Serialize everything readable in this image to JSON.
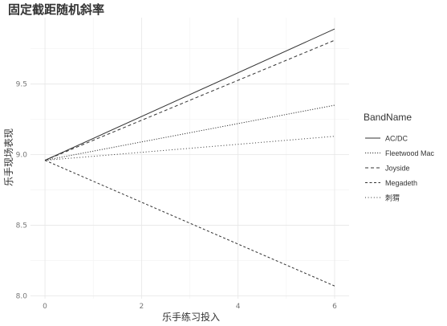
{
  "chart_data": {
    "type": "line",
    "title": "固定截距随机斜率",
    "xlabel": "乐手练习投入",
    "ylabel": "乐手现场表现",
    "xlim": [
      -0.3,
      6.3
    ],
    "ylim": [
      7.98,
      9.97
    ],
    "x_ticks": [
      0,
      2,
      4,
      6
    ],
    "y_ticks": [
      8.0,
      8.5,
      9.0,
      9.5
    ],
    "x_tick_labels": [
      "0",
      "2",
      "4",
      "6"
    ],
    "y_tick_labels": [
      "8.0",
      "8.5",
      "9.0",
      "9.5"
    ],
    "grid": true,
    "legend": {
      "title": "BandName",
      "position": "right"
    },
    "series": [
      {
        "name": "AC/DC",
        "linetype": "solid",
        "x": [
          0,
          6
        ],
        "y": [
          8.96,
          9.89
        ]
      },
      {
        "name": "Fleetwood Mac",
        "linetype": "dotted",
        "x": [
          0,
          6
        ],
        "y": [
          8.96,
          9.35
        ]
      },
      {
        "name": "Joyside",
        "linetype": "dashed",
        "x": [
          0,
          6
        ],
        "y": [
          8.96,
          9.81
        ]
      },
      {
        "name": "Megadeth",
        "linetype": "longdash",
        "x": [
          0,
          6
        ],
        "y": [
          8.96,
          8.07
        ]
      },
      {
        "name": "刺猬",
        "linetype": "dotted-sparse",
        "x": [
          0,
          6
        ],
        "y": [
          8.96,
          9.13
        ]
      }
    ],
    "colors": {
      "line": "#333333",
      "grid": "#e6e6e6",
      "tick_text": "#777777"
    }
  }
}
